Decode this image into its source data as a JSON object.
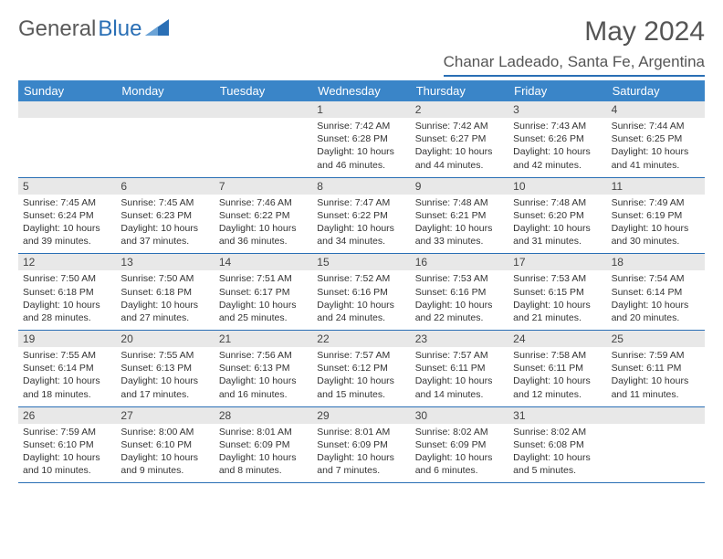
{
  "logo": {
    "text1": "General",
    "text2": "Blue"
  },
  "title": "May 2024",
  "location": "Chanar Ladeado, Santa Fe, Argentina",
  "colors": {
    "header_bg": "#3a85c8",
    "accent": "#2a6fb5",
    "daynum_bg": "#e8e8e8",
    "text": "#333333",
    "title_text": "#555555"
  },
  "days_of_week": [
    "Sunday",
    "Monday",
    "Tuesday",
    "Wednesday",
    "Thursday",
    "Friday",
    "Saturday"
  ],
  "weeks": [
    [
      {
        "n": "",
        "sunrise": "",
        "sunset": "",
        "daylight": ""
      },
      {
        "n": "",
        "sunrise": "",
        "sunset": "",
        "daylight": ""
      },
      {
        "n": "",
        "sunrise": "",
        "sunset": "",
        "daylight": ""
      },
      {
        "n": "1",
        "sunrise": "Sunrise: 7:42 AM",
        "sunset": "Sunset: 6:28 PM",
        "daylight": "Daylight: 10 hours and 46 minutes."
      },
      {
        "n": "2",
        "sunrise": "Sunrise: 7:42 AM",
        "sunset": "Sunset: 6:27 PM",
        "daylight": "Daylight: 10 hours and 44 minutes."
      },
      {
        "n": "3",
        "sunrise": "Sunrise: 7:43 AM",
        "sunset": "Sunset: 6:26 PM",
        "daylight": "Daylight: 10 hours and 42 minutes."
      },
      {
        "n": "4",
        "sunrise": "Sunrise: 7:44 AM",
        "sunset": "Sunset: 6:25 PM",
        "daylight": "Daylight: 10 hours and 41 minutes."
      }
    ],
    [
      {
        "n": "5",
        "sunrise": "Sunrise: 7:45 AM",
        "sunset": "Sunset: 6:24 PM",
        "daylight": "Daylight: 10 hours and 39 minutes."
      },
      {
        "n": "6",
        "sunrise": "Sunrise: 7:45 AM",
        "sunset": "Sunset: 6:23 PM",
        "daylight": "Daylight: 10 hours and 37 minutes."
      },
      {
        "n": "7",
        "sunrise": "Sunrise: 7:46 AM",
        "sunset": "Sunset: 6:22 PM",
        "daylight": "Daylight: 10 hours and 36 minutes."
      },
      {
        "n": "8",
        "sunrise": "Sunrise: 7:47 AM",
        "sunset": "Sunset: 6:22 PM",
        "daylight": "Daylight: 10 hours and 34 minutes."
      },
      {
        "n": "9",
        "sunrise": "Sunrise: 7:48 AM",
        "sunset": "Sunset: 6:21 PM",
        "daylight": "Daylight: 10 hours and 33 minutes."
      },
      {
        "n": "10",
        "sunrise": "Sunrise: 7:48 AM",
        "sunset": "Sunset: 6:20 PM",
        "daylight": "Daylight: 10 hours and 31 minutes."
      },
      {
        "n": "11",
        "sunrise": "Sunrise: 7:49 AM",
        "sunset": "Sunset: 6:19 PM",
        "daylight": "Daylight: 10 hours and 30 minutes."
      }
    ],
    [
      {
        "n": "12",
        "sunrise": "Sunrise: 7:50 AM",
        "sunset": "Sunset: 6:18 PM",
        "daylight": "Daylight: 10 hours and 28 minutes."
      },
      {
        "n": "13",
        "sunrise": "Sunrise: 7:50 AM",
        "sunset": "Sunset: 6:18 PM",
        "daylight": "Daylight: 10 hours and 27 minutes."
      },
      {
        "n": "14",
        "sunrise": "Sunrise: 7:51 AM",
        "sunset": "Sunset: 6:17 PM",
        "daylight": "Daylight: 10 hours and 25 minutes."
      },
      {
        "n": "15",
        "sunrise": "Sunrise: 7:52 AM",
        "sunset": "Sunset: 6:16 PM",
        "daylight": "Daylight: 10 hours and 24 minutes."
      },
      {
        "n": "16",
        "sunrise": "Sunrise: 7:53 AM",
        "sunset": "Sunset: 6:16 PM",
        "daylight": "Daylight: 10 hours and 22 minutes."
      },
      {
        "n": "17",
        "sunrise": "Sunrise: 7:53 AM",
        "sunset": "Sunset: 6:15 PM",
        "daylight": "Daylight: 10 hours and 21 minutes."
      },
      {
        "n": "18",
        "sunrise": "Sunrise: 7:54 AM",
        "sunset": "Sunset: 6:14 PM",
        "daylight": "Daylight: 10 hours and 20 minutes."
      }
    ],
    [
      {
        "n": "19",
        "sunrise": "Sunrise: 7:55 AM",
        "sunset": "Sunset: 6:14 PM",
        "daylight": "Daylight: 10 hours and 18 minutes."
      },
      {
        "n": "20",
        "sunrise": "Sunrise: 7:55 AM",
        "sunset": "Sunset: 6:13 PM",
        "daylight": "Daylight: 10 hours and 17 minutes."
      },
      {
        "n": "21",
        "sunrise": "Sunrise: 7:56 AM",
        "sunset": "Sunset: 6:13 PM",
        "daylight": "Daylight: 10 hours and 16 minutes."
      },
      {
        "n": "22",
        "sunrise": "Sunrise: 7:57 AM",
        "sunset": "Sunset: 6:12 PM",
        "daylight": "Daylight: 10 hours and 15 minutes."
      },
      {
        "n": "23",
        "sunrise": "Sunrise: 7:57 AM",
        "sunset": "Sunset: 6:11 PM",
        "daylight": "Daylight: 10 hours and 14 minutes."
      },
      {
        "n": "24",
        "sunrise": "Sunrise: 7:58 AM",
        "sunset": "Sunset: 6:11 PM",
        "daylight": "Daylight: 10 hours and 12 minutes."
      },
      {
        "n": "25",
        "sunrise": "Sunrise: 7:59 AM",
        "sunset": "Sunset: 6:11 PM",
        "daylight": "Daylight: 10 hours and 11 minutes."
      }
    ],
    [
      {
        "n": "26",
        "sunrise": "Sunrise: 7:59 AM",
        "sunset": "Sunset: 6:10 PM",
        "daylight": "Daylight: 10 hours and 10 minutes."
      },
      {
        "n": "27",
        "sunrise": "Sunrise: 8:00 AM",
        "sunset": "Sunset: 6:10 PM",
        "daylight": "Daylight: 10 hours and 9 minutes."
      },
      {
        "n": "28",
        "sunrise": "Sunrise: 8:01 AM",
        "sunset": "Sunset: 6:09 PM",
        "daylight": "Daylight: 10 hours and 8 minutes."
      },
      {
        "n": "29",
        "sunrise": "Sunrise: 8:01 AM",
        "sunset": "Sunset: 6:09 PM",
        "daylight": "Daylight: 10 hours and 7 minutes."
      },
      {
        "n": "30",
        "sunrise": "Sunrise: 8:02 AM",
        "sunset": "Sunset: 6:09 PM",
        "daylight": "Daylight: 10 hours and 6 minutes."
      },
      {
        "n": "31",
        "sunrise": "Sunrise: 8:02 AM",
        "sunset": "Sunset: 6:08 PM",
        "daylight": "Daylight: 10 hours and 5 minutes."
      },
      {
        "n": "",
        "sunrise": "",
        "sunset": "",
        "daylight": ""
      }
    ]
  ]
}
